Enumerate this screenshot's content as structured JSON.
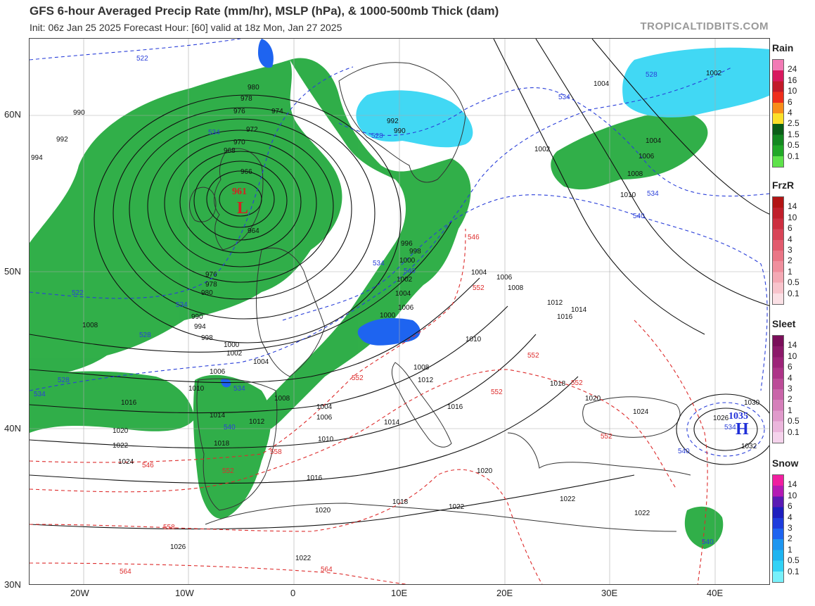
{
  "header": {
    "title": "GFS 6-hour Averaged Precip Rate (mm/hr), MSLP (hPa), & 1000-500mb Thick (dam)",
    "subtitle": "Init: 06z Jan 25 2025   Forecast Hour: [60]   valid at 18z Mon, Jan 27 2025",
    "brand": "TROPICALTIDBITS.COM"
  },
  "axes": {
    "lon_labels": [
      "20W",
      "10W",
      "0",
      "10E",
      "20E",
      "30E",
      "40E"
    ],
    "lat_labels": [
      "60N",
      "50N",
      "40N",
      "30N"
    ]
  },
  "pressure_centers": {
    "low": {
      "letter": "L",
      "value": "961"
    },
    "high": {
      "letter": "H",
      "value": "1035"
    }
  },
  "isobar_labels": [
    "990",
    "992",
    "994",
    "980",
    "978",
    "976",
    "974",
    "972",
    "970",
    "968",
    "966",
    "964",
    "961",
    "1008",
    "1016",
    "1020",
    "1022",
    "1024",
    "1026",
    "1000",
    "1002",
    "1004",
    "1006",
    "1010",
    "1012",
    "1014",
    "1018",
    "996",
    "998",
    "1030",
    "1032",
    "1002",
    "1004"
  ],
  "thickness_labels": [
    "522",
    "528",
    "534",
    "540",
    "546",
    "552",
    "558",
    "564"
  ],
  "legend": {
    "rain": {
      "title": "Rain",
      "labels": [
        "24",
        "16",
        "10",
        "6",
        "4",
        "2.5",
        "1.5",
        "0.5",
        "0.1"
      ],
      "colors": [
        "#f27ab5",
        "#d8195e",
        "#c21a29",
        "#ef2e1c",
        "#f88d1b",
        "#fbe02a",
        "#0a5e17",
        "#138820",
        "#21a827",
        "#5ee24a"
      ]
    },
    "frzr": {
      "title": "FrzR",
      "labels": [
        "14",
        "10",
        "6",
        "4",
        "3",
        "2",
        "1",
        "0.5",
        "0.1"
      ],
      "colors": [
        "#b21414",
        "#c01f2b",
        "#cd2f40",
        "#d84457",
        "#e25b6e",
        "#ea7686",
        "#f08f9d",
        "#f4a9b4",
        "#f8c4cc",
        "#fbe0e5"
      ]
    },
    "sleet": {
      "title": "Sleet",
      "labels": [
        "14",
        "10",
        "6",
        "4",
        "3",
        "2",
        "1",
        "0.5",
        "0.1"
      ],
      "colors": [
        "#7a0e5a",
        "#8c196a",
        "#9d2479",
        "#ad3488",
        "#bc4c98",
        "#c965a9",
        "#d57fba",
        "#e09acb",
        "#ebb6dc",
        "#f5d3ec"
      ]
    },
    "snow": {
      "title": "Snow",
      "labels": [
        "14",
        "10",
        "6",
        "4",
        "3",
        "2",
        "1",
        "0.5",
        "0.1"
      ],
      "colors": [
        "#f01ea0",
        "#b41ab4",
        "#5a1ab4",
        "#1e1ebe",
        "#1e3cdc",
        "#1e64f0",
        "#1e96f0",
        "#1eb4f0",
        "#32d2f5",
        "#78f0fa"
      ]
    }
  }
}
